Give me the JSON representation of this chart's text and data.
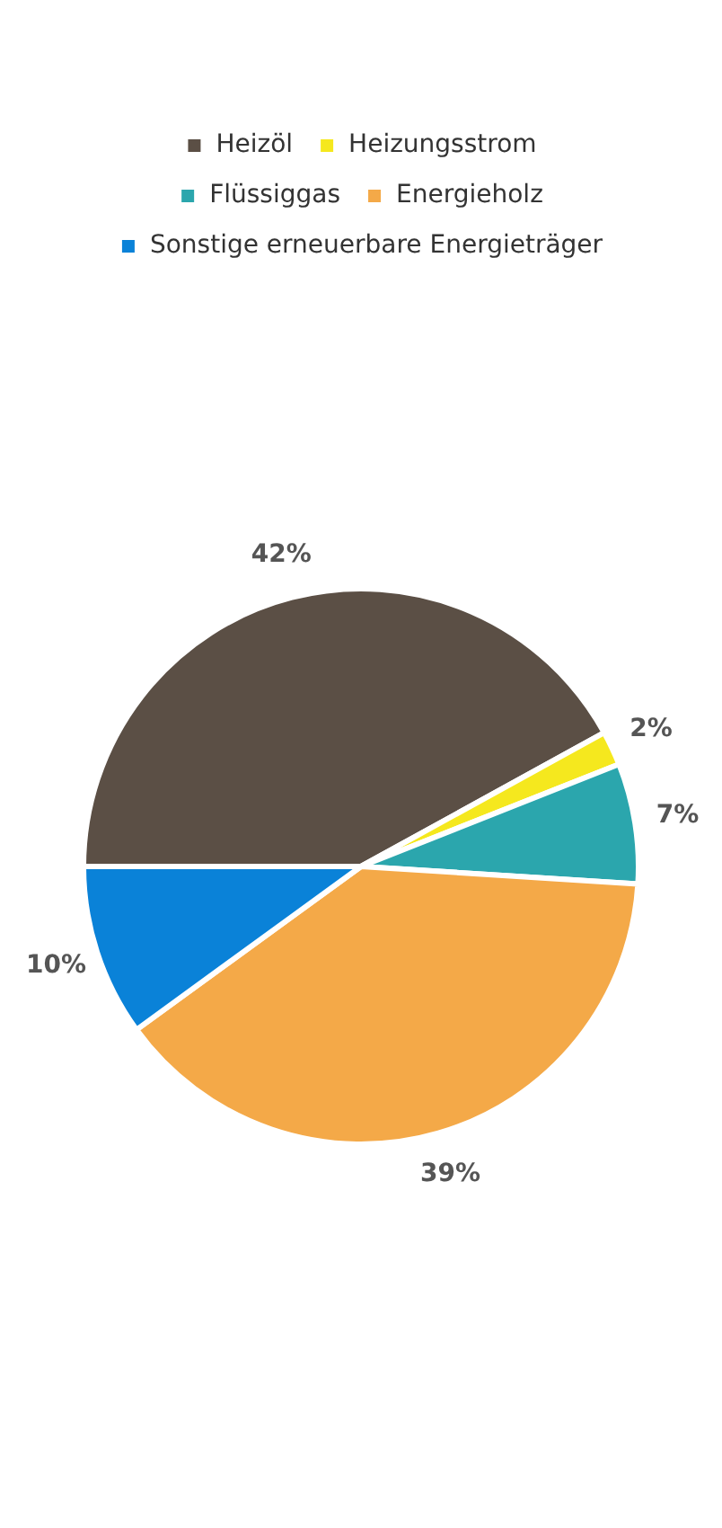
{
  "chart_data": {
    "type": "pie",
    "categories": [
      "Heizöl",
      "Heizungsstrom",
      "Flüssiggas",
      "Energieholz",
      "Sonstige erneuerbare Energieträger"
    ],
    "values": [
      42,
      2,
      7,
      39,
      10
    ],
    "colors": [
      "#5b4f45",
      "#f5e81e",
      "#2ba6ad",
      "#f4a948",
      "#0a82d8"
    ],
    "value_labels": [
      "42%",
      "2%",
      "7%",
      "39%",
      "10%"
    ],
    "legend": "top"
  }
}
